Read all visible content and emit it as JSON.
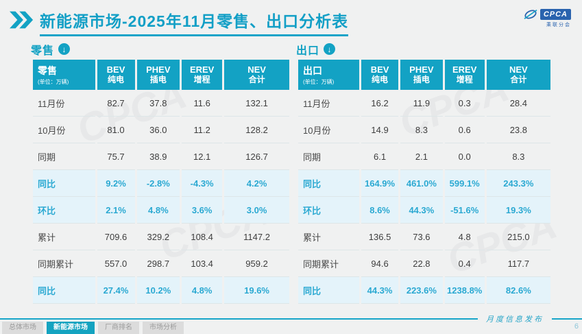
{
  "header": {
    "title": "新能源市场-2025年11月零售、出口分析表",
    "logo": {
      "abbr": "CPCA",
      "name": "乘联分会"
    }
  },
  "columns": [
    {
      "en": "BEV",
      "cn": "纯电"
    },
    {
      "en": "PHEV",
      "cn": "插电"
    },
    {
      "en": "EREV",
      "cn": "增程"
    },
    {
      "en": "NEV",
      "cn": "合计"
    }
  ],
  "tables": [
    {
      "name": "零售",
      "unit": "(单位：万辆)",
      "rows": [
        {
          "label": "11月份",
          "values": [
            "82.7",
            "37.8",
            "11.6",
            "132.1"
          ],
          "highlight": false
        },
        {
          "label": "10月份",
          "values": [
            "81.0",
            "36.0",
            "11.2",
            "128.2"
          ],
          "highlight": false
        },
        {
          "label": "同期",
          "values": [
            "75.7",
            "38.9",
            "12.1",
            "126.7"
          ],
          "highlight": false
        },
        {
          "label": "同比",
          "values": [
            "9.2%",
            "-2.8%",
            "-4.3%",
            "4.2%"
          ],
          "highlight": true
        },
        {
          "label": "环比",
          "values": [
            "2.1%",
            "4.8%",
            "3.6%",
            "3.0%"
          ],
          "highlight": true
        },
        {
          "label": "累计",
          "values": [
            "709.6",
            "329.2",
            "108.4",
            "1147.2"
          ],
          "highlight": false
        },
        {
          "label": "同期累计",
          "values": [
            "557.0",
            "298.7",
            "103.4",
            "959.2"
          ],
          "highlight": false
        },
        {
          "label": "同比",
          "values": [
            "27.4%",
            "10.2%",
            "4.8%",
            "19.6%"
          ],
          "highlight": true
        }
      ]
    },
    {
      "name": "出口",
      "unit": "(单位：万辆)",
      "rows": [
        {
          "label": "11月份",
          "values": [
            "16.2",
            "11.9",
            "0.3",
            "28.4"
          ],
          "highlight": false
        },
        {
          "label": "10月份",
          "values": [
            "14.9",
            "8.3",
            "0.6",
            "23.8"
          ],
          "highlight": false
        },
        {
          "label": "同期",
          "values": [
            "6.1",
            "2.1",
            "0.0",
            "8.3"
          ],
          "highlight": false
        },
        {
          "label": "同比",
          "values": [
            "164.9%",
            "461.0%",
            "599.1%",
            "243.3%"
          ],
          "highlight": true
        },
        {
          "label": "环比",
          "values": [
            "8.6%",
            "44.3%",
            "-51.6%",
            "19.3%"
          ],
          "highlight": true
        },
        {
          "label": "累计",
          "values": [
            "136.5",
            "73.6",
            "4.8",
            "215.0"
          ],
          "highlight": false
        },
        {
          "label": "同期累计",
          "values": [
            "94.6",
            "22.8",
            "0.4",
            "117.7"
          ],
          "highlight": false
        },
        {
          "label": "同比",
          "values": [
            "44.3%",
            "223.6%",
            "1238.8%",
            "82.6%"
          ],
          "highlight": true
        }
      ]
    }
  ],
  "footer": {
    "tabs": [
      {
        "label": "总体市场",
        "active": false
      },
      {
        "label": "新能源市场",
        "active": true
      },
      {
        "label": "厂商排名",
        "active": false
      },
      {
        "label": "市场分析",
        "active": false
      }
    ],
    "caption": "月度信息发布",
    "page": "6"
  },
  "watermark": "CPCA",
  "colors": {
    "accent_teal": "#13A2C4",
    "highlight_row_bg": "#E4F3FA",
    "highlight_text": "#2BA9D2",
    "logo_blue": "#2A63AE",
    "page_bg": "#F0F1F1"
  }
}
